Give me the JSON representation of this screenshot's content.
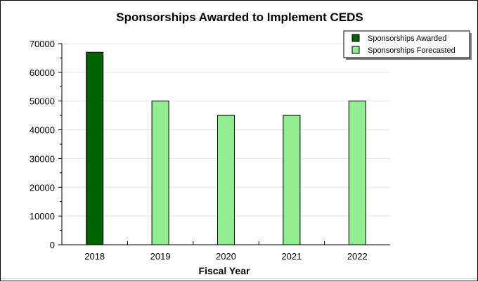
{
  "chart_data": {
    "type": "bar",
    "title": "Sponsorships Awarded to Implement CEDS",
    "xlabel": "Fiscal Year",
    "ylabel": "",
    "categories": [
      "2018",
      "2019",
      "2020",
      "2021",
      "2022"
    ],
    "series": [
      {
        "name": "Sponsorships Awarded",
        "color": "#006400",
        "values": [
          67000,
          null,
          null,
          null,
          null
        ]
      },
      {
        "name": "Sponsorships Forecasted",
        "color": "#90ee90",
        "values": [
          null,
          50000,
          45000,
          45000,
          50000
        ]
      }
    ],
    "ylim": [
      0,
      70000
    ],
    "yticks": [
      "0",
      "10000",
      "20000",
      "30000",
      "40000",
      "50000",
      "60000",
      "70000"
    ],
    "grid": true,
    "legend": "top-right"
  }
}
